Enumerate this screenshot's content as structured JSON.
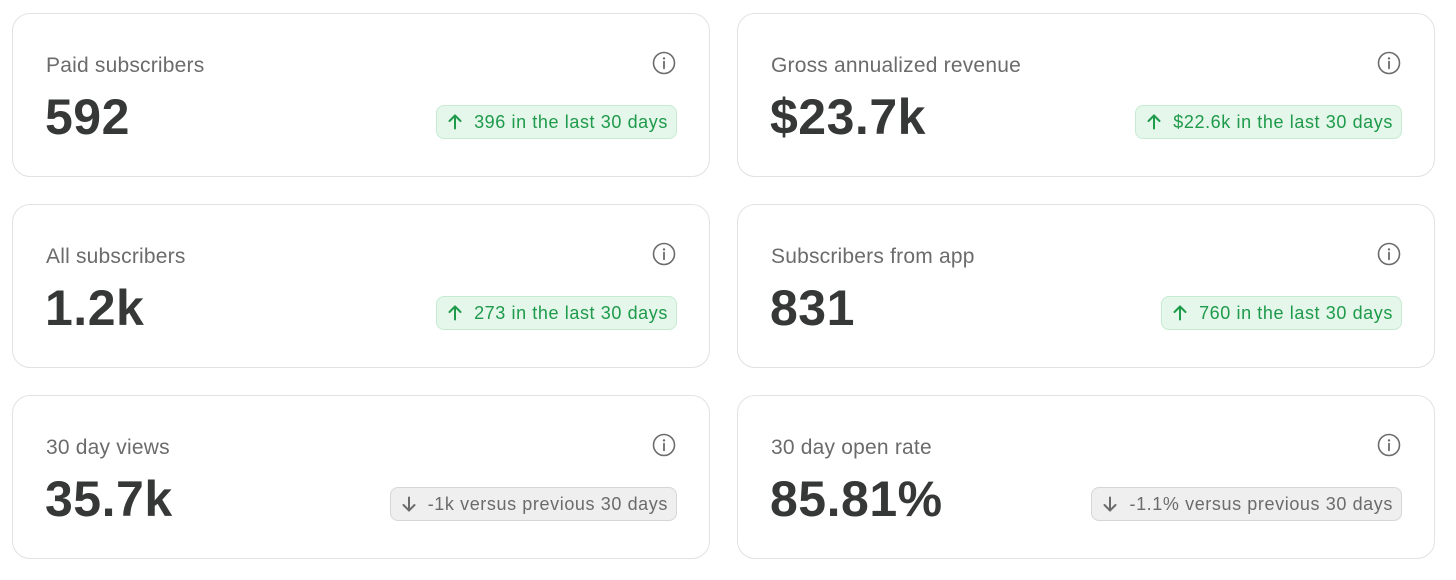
{
  "cards": [
    {
      "label": "Paid subscribers",
      "value": "592",
      "change": "396 in the last 30 days",
      "trend": "up",
      "icon": "arrow-up-icon"
    },
    {
      "label": "Gross annualized revenue",
      "value": "$23.7k",
      "change": "$22.6k in the last 30 days",
      "trend": "up",
      "icon": "arrow-up-icon"
    },
    {
      "label": "All subscribers",
      "value": "1.2k",
      "change": "273 in the last 30 days",
      "trend": "up",
      "icon": "arrow-up-icon"
    },
    {
      "label": "Subscribers from app",
      "value": "831",
      "change": "760 in the last 30 days",
      "trend": "up",
      "icon": "arrow-up-icon"
    },
    {
      "label": "30 day views",
      "value": "35.7k",
      "change": "-1k versus previous 30 days",
      "trend": "down",
      "icon": "arrow-down-icon"
    },
    {
      "label": "30 day open rate",
      "value": "85.81%",
      "change": "-1.1% versus previous 30 days",
      "trend": "down",
      "icon": "arrow-down-icon"
    }
  ],
  "info_icon": "info-icon",
  "colors": {
    "up_text": "#1e9a4b",
    "up_background": "#e5f6ea",
    "down_text": "#6b6b6b",
    "down_background": "#efefef",
    "value_text": "#363737",
    "label_text": "#6b6b6b",
    "card_border": "#e2e2e2"
  }
}
